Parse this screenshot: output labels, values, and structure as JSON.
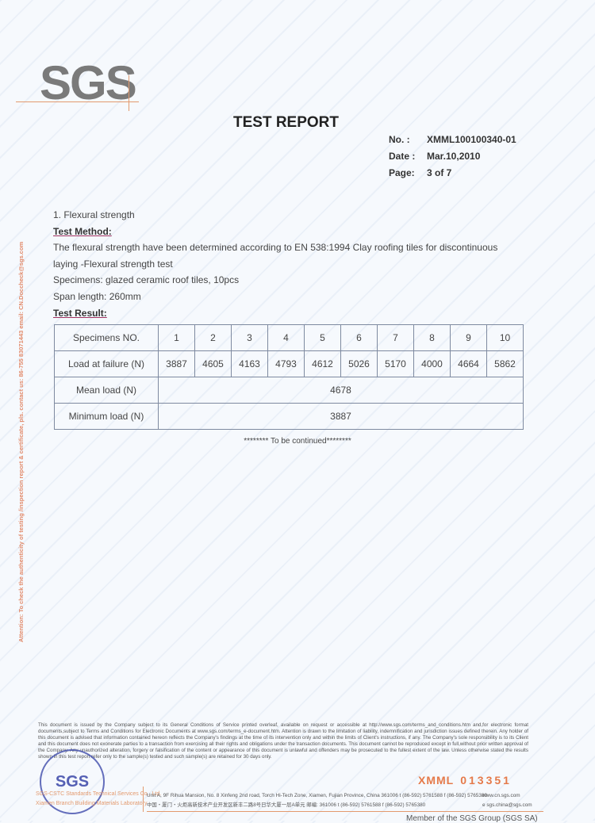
{
  "logo": "SGS",
  "title": "TEST REPORT",
  "meta": [
    {
      "k": "No. :",
      "v": "XMML100100340-01"
    },
    {
      "k": "Date :",
      "v": "Mar.10,2010"
    },
    {
      "k": "Page:",
      "v": "3 of 7"
    }
  ],
  "side_note": "Attention: To check the authenticity of testing /inspection report & certificate, pls. contact us: 86-755 83071443 email: CN.Doccheck@sgs.com",
  "section": "1. Flexural strength",
  "method_heading": "Test Method:",
  "method_line1": "The flexural strength have been determined according to EN 538:1994 Clay roofing tiles for discontinuous",
  "method_line2": "laying -Flexural strength test",
  "specimens": "Specimens: glazed ceramic roof tiles, 10pcs",
  "span": "Span length: 260mm",
  "result_heading": "Test Result:",
  "table": {
    "specimen_label": "Specimens NO.",
    "specimens": [
      "1",
      "2",
      "3",
      "4",
      "5",
      "6",
      "7",
      "8",
      "9",
      "10"
    ],
    "load_label": "Load at failure (N)",
    "loads": [
      "3887",
      "4605",
      "4163",
      "4793",
      "4612",
      "5026",
      "5170",
      "4000",
      "4664",
      "5862"
    ],
    "mean_label": "Mean load (N)",
    "mean": "4678",
    "min_label": "Minimum load (N)",
    "min": "3887"
  },
  "continued": "******** To be continued********",
  "fine_print": "This document is issued by the Company subject to its General Conditions of Service printed overleaf, available on request or accessible at http://www.sgs.com/terms_and_conditions.htm and,for electronic format documents,subject to Terms and Conditions for Electronic Documents at www.sgs.com/terms_e-document.htm. Attention is drawn to the limitation of liability, indemnification and jurisdiction issues defined therein. Any holder of this document is advised that information contained hereon reflects the Company's findings at the time of its intervention only and within the limits of Client's instructions, if any. The Company's sole responsibility is to its Client and this document does not exonerate parties to a transaction from exercising all their rights and obligations under the transaction documents. This document cannot be reproduced except in full,without prior written approval of the Company. Any unauthorized alteration, forgery or falsification of the content or appearance of this document is unlawful and offenders may be prosecuted to the fullest extent of the law. Unless otherwise stated the results shown in this test report refer only to the sample(s) tested and such sample(s) are retained for 30 days only.",
  "stamp": "SGS",
  "company1": "SGS-CSTC Standards Technical Services Co., Ltd.",
  "company2": "Xiamen Branch Building Materials Laboratory",
  "addr1": "Unit A, 9F Rihua Mansion, No. 8 Xinfeng 2nd road, Torch Hi-Tech Zone, Xiamen, Fujian Province, China 361006   t (86-592) 5761588   f (86-592) 5765380",
  "addr2": "中国・厦门・火炬高新技术产业开发区新丰二路8号日华大厦一层A单元 邮编: 361006   t (86-592) 5761588   f (86-592) 5765380",
  "serial_prefix": "XMML",
  "serial_no": "013351",
  "web1": "www.cn.sgs.com",
  "web2": "e sgs.china@sgs.com",
  "member": "Member of the SGS Group (SGS SA)",
  "colors": {
    "accent": "#e57a4a",
    "stamp": "#3a46a8"
  }
}
